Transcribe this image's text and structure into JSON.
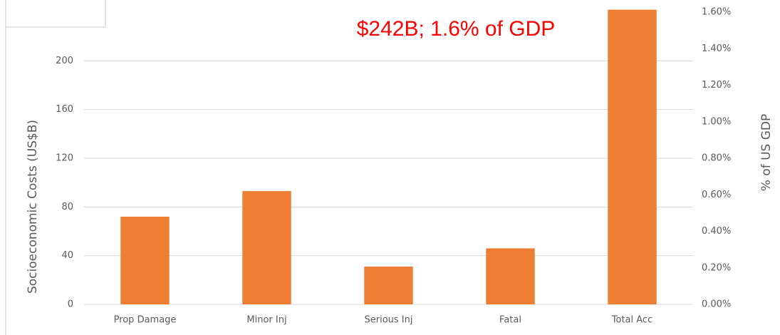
{
  "chart_data": {
    "type": "bar",
    "categories": [
      "Prop Damage",
      "Minor Inj",
      "Serious Inj",
      "Fatal",
      "Total Acc"
    ],
    "series": [
      {
        "name": "Socioeconomic Costs",
        "color": "#ed7d31",
        "values": [
          72,
          93,
          31,
          46,
          242
        ]
      }
    ],
    "ylabel": "Socioeconomic Costs (US$B)",
    "y2label": "% of US GDP",
    "annotation": "$242B; 1.6% of GDP",
    "ylim": [
      0,
      240
    ],
    "yticks": [
      0,
      40,
      80,
      120,
      160,
      200
    ],
    "y2lim": [
      0,
      1.6
    ],
    "y2ticks": [
      {
        "value": 0,
        "label": "0.00%"
      },
      {
        "value": 0.2,
        "label": "0.20%"
      },
      {
        "value": 0.4,
        "label": "0.40%"
      },
      {
        "value": 0.6,
        "label": "0.60%"
      },
      {
        "value": 0.8,
        "label": "0.80%"
      },
      {
        "value": 1.0,
        "label": "1.00%"
      },
      {
        "value": 1.2,
        "label": "1.20%"
      },
      {
        "value": 1.4,
        "label": "1.40%"
      },
      {
        "value": 1.6,
        "label": "1.60%"
      }
    ],
    "grid": true
  }
}
